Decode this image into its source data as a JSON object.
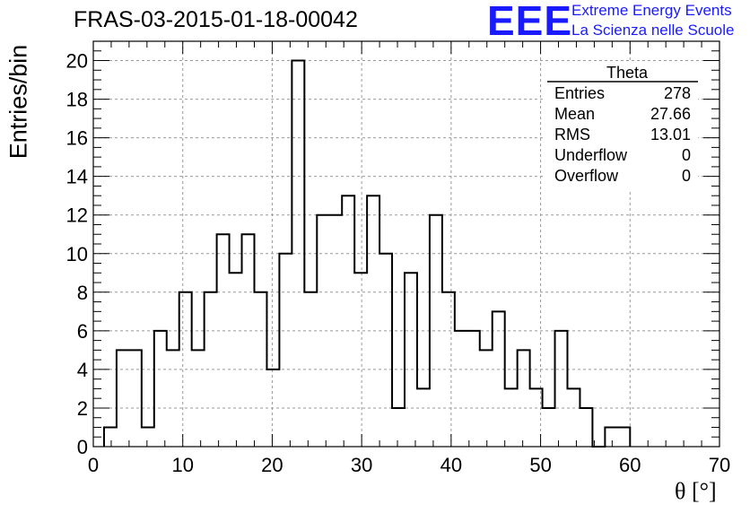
{
  "title": "FRAS-03-2015-01-18-00042",
  "logo": {
    "mark": "EEE",
    "line1": "Extreme Energy Events",
    "line2": "La Scienza nelle Scuole",
    "color": "#1a1aff"
  },
  "stats_box": {
    "title": "Theta",
    "rows": [
      {
        "label": "Entries",
        "value": "278"
      },
      {
        "label": "Mean",
        "value": "27.66"
      },
      {
        "label": "RMS",
        "value": "13.01"
      },
      {
        "label": "Underflow",
        "value": "0"
      },
      {
        "label": "Overflow",
        "value": "0"
      }
    ]
  },
  "chart_data": {
    "type": "bar",
    "title": "FRAS-03-2015-01-18-00042",
    "xlabel": "θ [°]",
    "ylabel": "Entries/bin",
    "xlim": [
      0,
      70
    ],
    "ylim": [
      0,
      21
    ],
    "grid": true,
    "x_ticks": [
      0,
      10,
      20,
      30,
      40,
      50,
      60,
      70
    ],
    "y_ticks": [
      0,
      2,
      4,
      6,
      8,
      10,
      12,
      14,
      16,
      18,
      20
    ],
    "bin_width": 1.4,
    "bin_start": 1.2,
    "values": [
      1,
      5,
      5,
      1,
      6,
      5,
      8,
      5,
      8,
      11,
      9,
      11,
      8,
      4,
      10,
      20,
      8,
      12,
      12,
      13,
      9,
      13,
      10,
      2,
      9,
      3,
      12,
      8,
      6,
      6,
      5,
      7,
      3,
      5,
      3,
      2,
      6,
      3,
      2,
      0,
      1,
      1
    ]
  }
}
